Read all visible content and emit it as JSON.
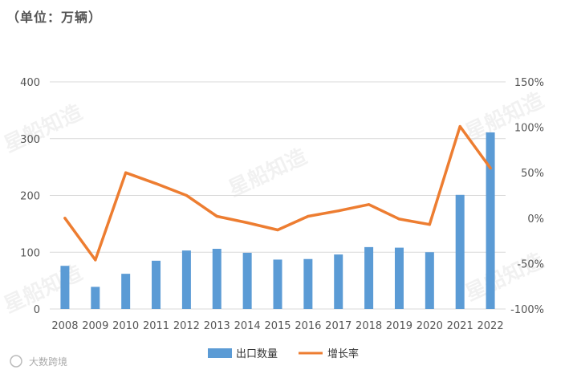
{
  "unit_label": "（单位：万辆）",
  "watermarks": [
    "星船知造",
    "星船知造",
    "星船知造",
    "星船知造",
    "星船知造"
  ],
  "brand_mark": "大数跨境",
  "colors": {
    "bar": "#5B9BD5",
    "line": "#ED7D31",
    "grid": "#d9d9d9"
  },
  "chart_data": {
    "type": "bar+line",
    "categories": [
      "2008",
      "2009",
      "2010",
      "2011",
      "2012",
      "2013",
      "2014",
      "2015",
      "2016",
      "2017",
      "2018",
      "2019",
      "2020",
      "2021",
      "2022"
    ],
    "series": [
      {
        "name": "出口数量",
        "type": "bar",
        "axis": "left",
        "values": [
          76,
          39,
          62,
          85,
          103,
          106,
          99,
          87,
          88,
          96,
          109,
          108,
          100,
          201,
          311
        ]
      },
      {
        "name": "增长率",
        "type": "line",
        "axis": "right",
        "values": [
          0,
          -46,
          50,
          38,
          25,
          2,
          -5,
          -13,
          2,
          8,
          15,
          -1,
          -7,
          101,
          55
        ]
      }
    ],
    "left_axis": {
      "min": 0,
      "max": 400,
      "ticks": [
        "0",
        "100",
        "200",
        "300",
        "400"
      ]
    },
    "right_axis": {
      "min": -100,
      "max": 150,
      "ticks": [
        "-100%",
        "-50%",
        "0%",
        "50%",
        "100%",
        "150%"
      ]
    },
    "grid": true,
    "legend_position": "bottom"
  }
}
